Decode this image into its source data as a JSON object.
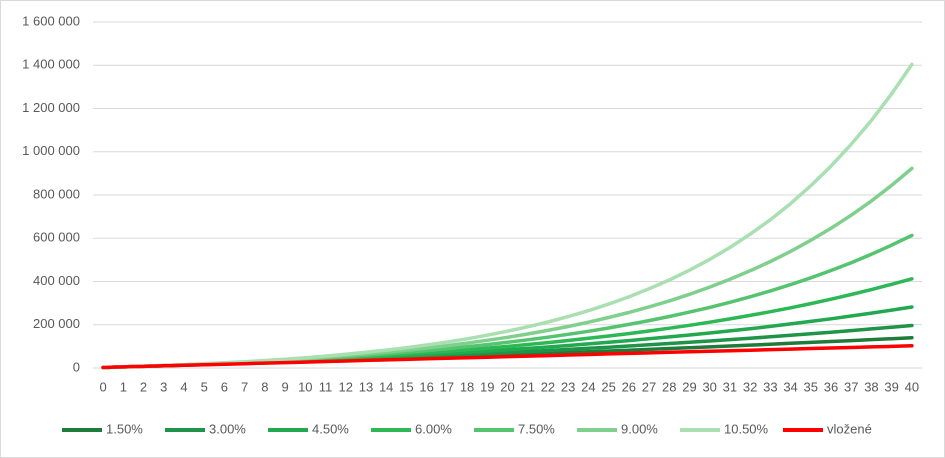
{
  "chart_data": {
    "type": "line",
    "categories": [
      "0",
      "1",
      "2",
      "3",
      "4",
      "5",
      "6",
      "7",
      "8",
      "9",
      "10",
      "11",
      "12",
      "13",
      "14",
      "15",
      "16",
      "17",
      "18",
      "19",
      "20",
      "21",
      "22",
      "23",
      "24",
      "25",
      "26",
      "27",
      "28",
      "29",
      "30",
      "31",
      "32",
      "33",
      "34",
      "35",
      "36",
      "37",
      "38",
      "39",
      "40"
    ],
    "ylim": [
      0,
      1600000
    ],
    "yticks": [
      0,
      {
        "value": 200000,
        "label": "200 000"
      },
      {
        "value": 400000,
        "label": "400 000"
      },
      {
        "value": 600000,
        "label": "600 000"
      },
      {
        "value": 800000,
        "label": "800 000"
      },
      {
        "value": 1000000,
        "label": "1 000 000"
      },
      {
        "value": 1200000,
        "label": "1 200 000"
      },
      {
        "value": 1400000,
        "label": "1 400 000"
      },
      {
        "value": 1600000,
        "label": "1 600 000"
      }
    ],
    "grid": true,
    "legend": "bottom",
    "series": [
      {
        "name": "1.50%",
        "color": "#1e7b3a",
        "values": [
          2500,
          5000,
          7600,
          10200,
          12900,
          15600,
          18300,
          21100,
          23900,
          26800,
          29700,
          32600,
          35600,
          38600,
          41700,
          44800,
          48000,
          51200,
          54500,
          57800,
          61200,
          64600,
          68100,
          71600,
          75200,
          78800,
          82500,
          86200,
          90000,
          93900,
          97800,
          101700,
          105800,
          109800,
          114000,
          118200,
          122500,
          126800,
          131200,
          135700,
          140200
        ]
      },
      {
        "name": "3.00%",
        "color": "#1f9448",
        "values": [
          2500,
          5100,
          7700,
          10500,
          13300,
          16200,
          19200,
          22200,
          25400,
          28700,
          32000,
          35500,
          39000,
          42700,
          46500,
          50400,
          54400,
          58500,
          62800,
          67200,
          71700,
          76300,
          81100,
          86100,
          91200,
          96400,
          101800,
          107300,
          113100,
          118900,
          125000,
          131300,
          137700,
          144300,
          151200,
          158200,
          165400,
          172900,
          180600,
          188500,
          196700
        ]
      },
      {
        "name": "4.50%",
        "color": "#22a84f",
        "values": [
          2500,
          5100,
          7800,
          10700,
          13700,
          16800,
          20100,
          23500,
          27000,
          30700,
          34600,
          38700,
          42900,
          47300,
          52000,
          56800,
          61900,
          67100,
          72700,
          78400,
          84500,
          90800,
          97300,
          104200,
          111400,
          118900,
          126800,
          135000,
          143600,
          152500,
          161900,
          171700,
          181900,
          192600,
          203700,
          215400,
          227600,
          240300,
          253700,
          267600,
          282100
        ]
      },
      {
        "name": "6.00%",
        "color": "#2bb855",
        "values": [
          2500,
          5200,
          8000,
          10900,
          14100,
          17400,
          21000,
          24700,
          28700,
          33000,
          37400,
          42200,
          47200,
          52500,
          58200,
          64200,
          70500,
          77300,
          84400,
          92000,
          100000,
          108500,
          117500,
          127000,
          137200,
          147900,
          159300,
          171300,
          184100,
          197600,
          212000,
          227200,
          243400,
          260500,
          278600,
          297800,
          318200,
          339800,
          362600,
          386900,
          412600
        ]
      },
      {
        "name": "7.50%",
        "color": "#55c46e",
        "values": [
          2500,
          5200,
          8100,
          11200,
          14500,
          18100,
          22000,
          26100,
          30600,
          35400,
          40500,
          46100,
          52000,
          58400,
          65300,
          72700,
          80600,
          89200,
          98400,
          108300,
          118900,
          130300,
          142600,
          155800,
          169900,
          185200,
          201600,
          219200,
          238100,
          258500,
          280400,
          303900,
          329200,
          356400,
          385600,
          417100,
          450800,
          487100,
          526200,
          568100,
          613300
        ]
      },
      {
        "name": "9.00%",
        "color": "#7fcf8d",
        "values": [
          2500,
          5200,
          8200,
          11400,
          15000,
          18800,
          23000,
          27600,
          32600,
          38000,
          43900,
          50400,
          57400,
          65000,
          73400,
          82500,
          92400,
          103300,
          115000,
          127900,
          141900,
          157200,
          173800,
          192000,
          211800,
          233300,
          256800,
          282400,
          310300,
          340800,
          373900,
          410100,
          449500,
          492500,
          539300,
          590300,
          645900,
          706600,
          772700,
          844700,
          923200
        ]
      },
      {
        "name": "10.50%",
        "color": "#a9dfb1",
        "values": [
          2500,
          5300,
          8300,
          11700,
          15400,
          19500,
          24100,
          29100,
          34700,
          40800,
          47600,
          55100,
          63400,
          72500,
          82700,
          93800,
          106200,
          119800,
          134900,
          151600,
          170000,
          190400,
          212800,
          237700,
          265100,
          295500,
          329000,
          366100,
          407000,
          452200,
          502200,
          557400,
          618500,
          685900,
          760400,
          842800,
          933800,
          1034300,
          1145400,
          1268200,
          1403800
        ]
      },
      {
        "name": "vložené",
        "color": "#ff0000",
        "values": [
          2500,
          5000,
          7500,
          10000,
          12500,
          15000,
          17500,
          20000,
          22500,
          25000,
          27500,
          30000,
          32500,
          35000,
          37500,
          40000,
          42500,
          45000,
          47500,
          50000,
          52500,
          55000,
          57500,
          60000,
          62500,
          65000,
          67500,
          70000,
          72500,
          75000,
          77500,
          80000,
          82500,
          85000,
          87500,
          90000,
          92500,
          95000,
          97500,
          100000,
          102500
        ]
      }
    ]
  }
}
